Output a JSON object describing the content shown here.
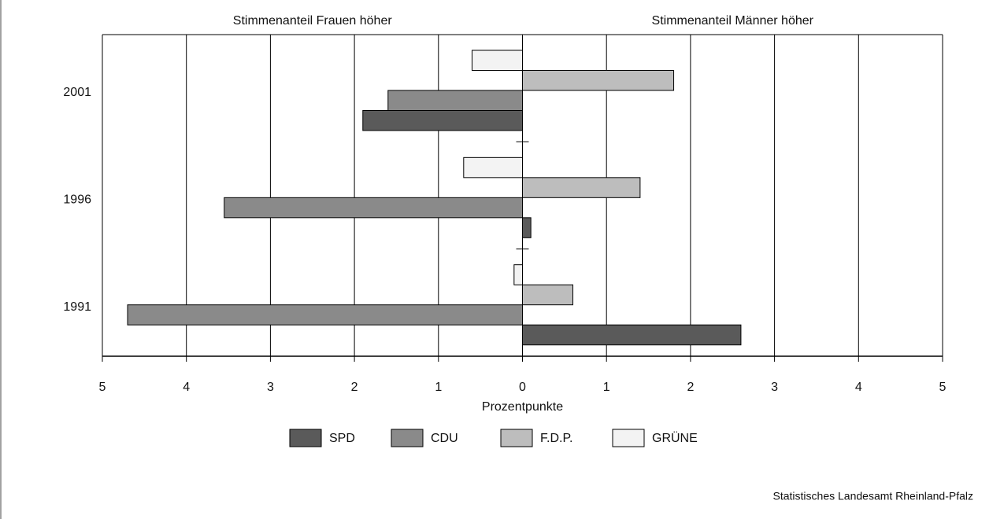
{
  "chart_data": {
    "type": "hbar",
    "annotations": [
      "Stimmenanteil Frauen höher",
      "Stimmenanteil Männer höher"
    ],
    "xlabel": "Prozentpunkte",
    "source": "Statistisches Landesamt Rheinland-Pfalz",
    "categories": [
      "2001",
      "1996",
      "1991"
    ],
    "series": [
      {
        "name": "SPD",
        "color": "#5a5a5a",
        "values": [
          -1.9,
          0.1,
          2.6
        ]
      },
      {
        "name": "CDU",
        "color": "#8a8a8a",
        "values": [
          -1.6,
          -3.55,
          -4.7
        ]
      },
      {
        "name": "F.D.P.",
        "color": "#bdbdbd",
        "values": [
          1.8,
          1.4,
          0.6
        ]
      },
      {
        "name": "GRÜNE",
        "color": "#f3f3f3",
        "values": [
          -0.6,
          -0.7,
          -0.1
        ]
      }
    ],
    "xlim": [
      -5,
      5
    ],
    "xticks": [
      {
        "value": -5,
        "label": "5"
      },
      {
        "value": -4,
        "label": "4"
      },
      {
        "value": -3,
        "label": "3"
      },
      {
        "value": -2,
        "label": "2"
      },
      {
        "value": -1,
        "label": "1"
      },
      0,
      1,
      2,
      3,
      4,
      5
    ],
    "grid": true
  }
}
